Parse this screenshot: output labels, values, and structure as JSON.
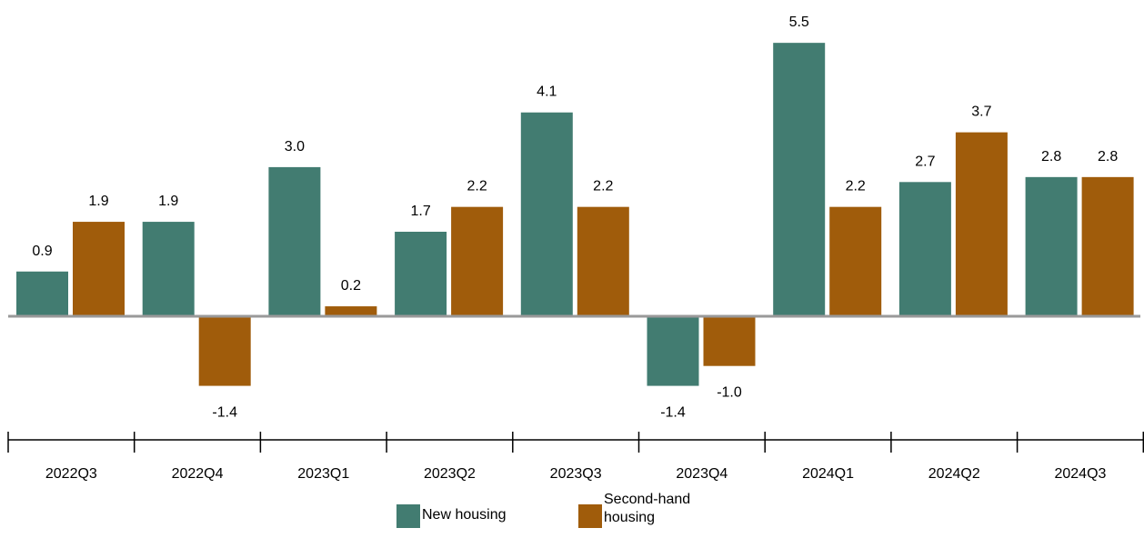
{
  "chart_data": {
    "type": "bar",
    "categories": [
      "2022Q3",
      "2022Q4",
      "2023Q1",
      "2023Q2",
      "2023Q3",
      "2023Q4",
      "2024Q1",
      "2024Q2",
      "2024Q3"
    ],
    "series": [
      {
        "name": "New housing",
        "color": "#427c71",
        "values": [
          0.9,
          1.9,
          3.0,
          1.7,
          4.1,
          -1.4,
          5.5,
          2.7,
          2.8
        ]
      },
      {
        "name": "Second-hand housing",
        "color": "#a05c0b",
        "values": [
          1.9,
          -1.4,
          0.2,
          2.2,
          2.2,
          -1.0,
          2.2,
          3.7,
          2.8
        ]
      }
    ],
    "data_labels": [
      [
        "0.9",
        "1.9",
        "3.0",
        "1.7",
        "4.1",
        "-1.4",
        "5.5",
        "2.7",
        "2.8"
      ],
      [
        "1.9",
        "-1.4",
        "0.2",
        "2.2",
        "2.2",
        "-1.0",
        "2.2",
        "3.7",
        "2.8"
      ]
    ],
    "ylim": [
      -2.5,
      6.4
    ],
    "zero_line_color": "#999999",
    "legend": {
      "placement": "bottom",
      "items": [
        {
          "label": "New housing",
          "line1": "New housing",
          "line2": ""
        },
        {
          "label": "Second-hand housing",
          "line1": "Second-hand",
          "line2": "housing"
        }
      ]
    }
  }
}
